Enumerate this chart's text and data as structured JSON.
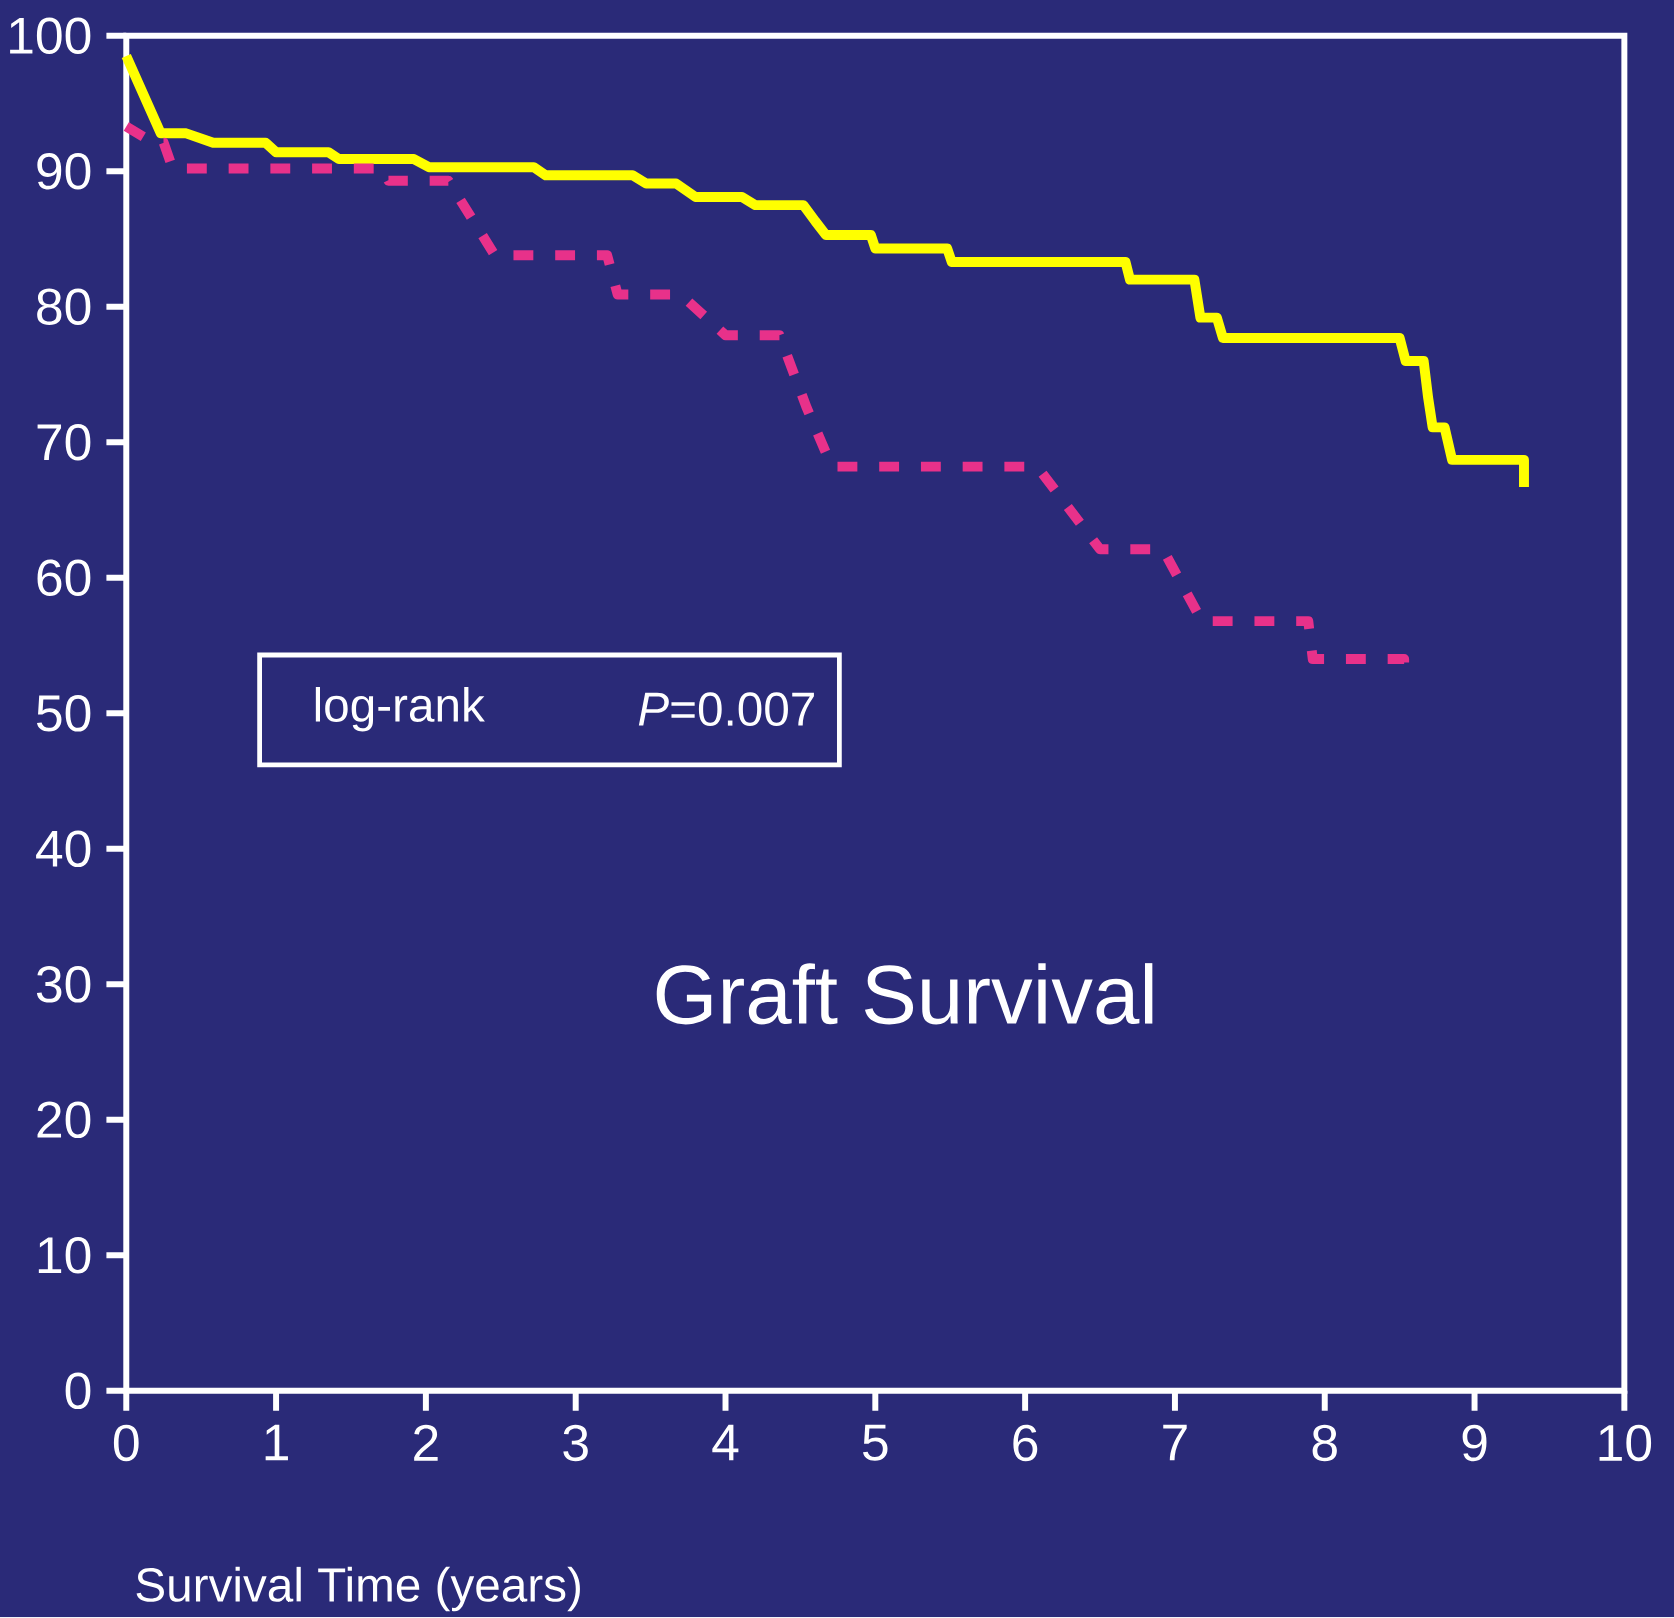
{
  "chart_data": {
    "type": "line",
    "title": "Graft Survival",
    "xlabel": "Survival Time (years)",
    "annotations": [
      "log-rank",
      "*P*=0.007"
    ],
    "xlim": [
      0,
      10
    ],
    "ylim": [
      0,
      100
    ],
    "xticks": [
      0,
      1,
      2,
      3,
      4,
      5,
      6,
      7,
      8,
      9,
      10
    ],
    "yticks": [
      0,
      10,
      20,
      30,
      40,
      50,
      60,
      70,
      80,
      90,
      100
    ],
    "series": [
      {
        "color": "#ffff00",
        "line_style": "solid",
        "x": [
          0,
          0.23,
          0.4,
          0.58,
          0.93,
          1.0,
          1.35,
          1.42,
          1.92,
          2.02,
          2.72,
          2.8,
          3.38,
          3.47,
          3.67,
          3.8,
          4.11,
          4.2,
          4.52,
          4.6,
          4.67,
          4.97,
          5.0,
          5.48,
          5.51,
          6.67,
          6.7,
          7.13,
          7.17,
          7.28,
          7.32,
          8.5,
          8.54,
          8.66,
          8.69,
          8.72,
          8.8,
          8.85,
          9.33,
          9.33
        ],
        "values": [
          98.5,
          92.8,
          92.8,
          92.1,
          92.1,
          91.4,
          91.4,
          90.9,
          90.9,
          90.3,
          90.3,
          89.7,
          89.7,
          89.1,
          89.1,
          88.1,
          88.1,
          87.5,
          87.5,
          86.3,
          85.3,
          85.3,
          84.3,
          84.3,
          83.3,
          83.3,
          82.0,
          82.0,
          79.2,
          79.2,
          77.7,
          77.7,
          76.0,
          76.0,
          73.3,
          71.1,
          71.1,
          68.7,
          68.7,
          66.7
        ]
      },
      {
        "color": "#e8318a",
        "line_style": "dashed",
        "x": [
          0,
          0.18,
          0.25,
          0.31,
          1.71,
          1.75,
          2.15,
          2.46,
          3.21,
          3.28,
          3.7,
          4.0,
          4.36,
          4.54,
          4.71,
          6.08,
          6.5,
          6.92,
          7.18,
          7.89,
          7.92,
          8.53,
          8.53
        ],
        "values": [
          93.3,
          92.1,
          92.1,
          90.2,
          90.2,
          89.3,
          89.3,
          83.8,
          83.8,
          80.9,
          80.9,
          77.9,
          77.9,
          72.6,
          68.2,
          68.2,
          62.1,
          62.1,
          56.8,
          56.8,
          54.0,
          54.0,
          53.3
        ]
      }
    ]
  }
}
